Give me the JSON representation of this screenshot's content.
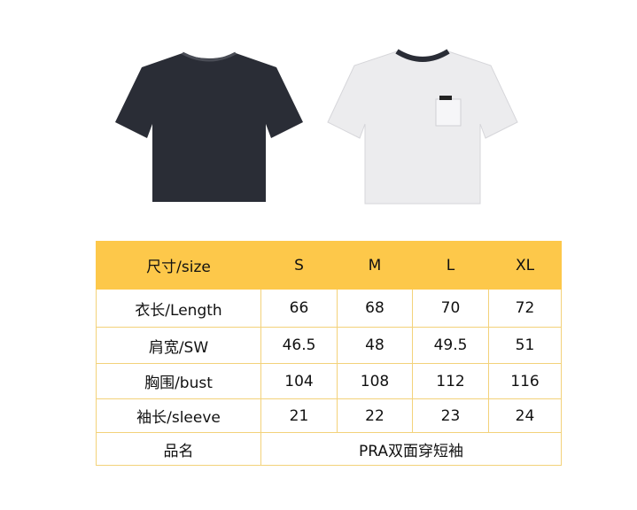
{
  "product_images": [
    {
      "name": "dark-shirt",
      "color": "#2a2d36"
    },
    {
      "name": "white-shirt",
      "color": "#ececee"
    }
  ],
  "size_table": {
    "header": [
      "尺寸/size",
      "S",
      "M",
      "L",
      "XL"
    ],
    "rows": [
      [
        "衣长/Length",
        "66",
        "68",
        "70",
        "72"
      ],
      [
        "肩宽/SW",
        "46.5",
        "48",
        "49.5",
        "51"
      ],
      [
        "胸围/bust",
        "104",
        "108",
        "112",
        "116"
      ],
      [
        "袖长/sleeve",
        "21",
        "22",
        "23",
        "24"
      ]
    ],
    "product_label": "品名",
    "product_name": "PRA双面穿短袖"
  },
  "colors": {
    "header_bg": "#fdc84a",
    "border": "#f3d27a"
  }
}
